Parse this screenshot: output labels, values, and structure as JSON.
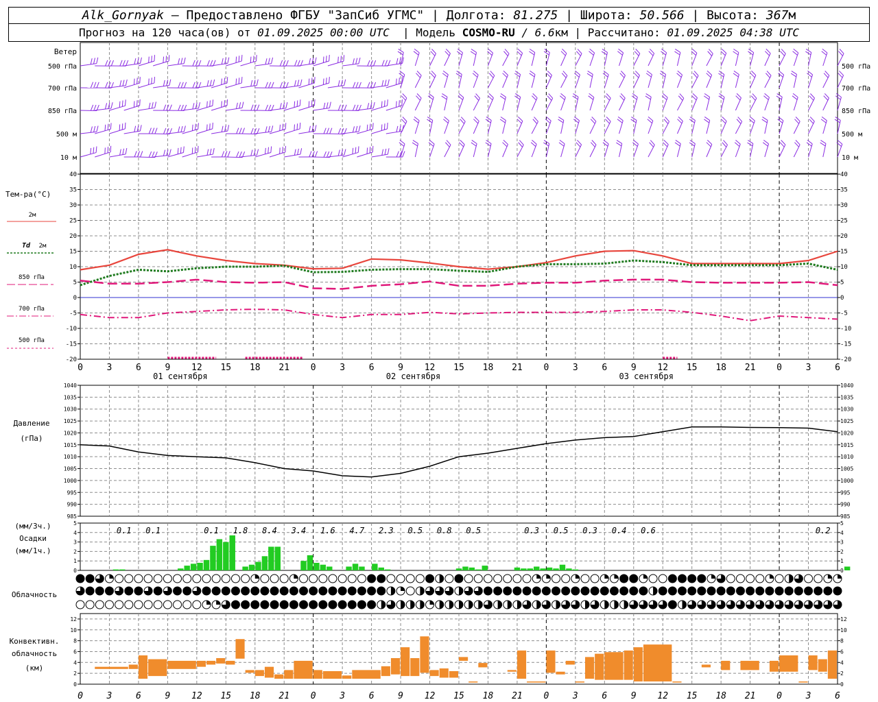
{
  "header": {
    "station": "Alk_Gornyak",
    "provider": "– Предоставлено ФГБУ \"ЗапСиб УГМС\" |",
    "lon_label": "Долгота:",
    "lon": "81.275",
    "lat_label": "| Широта:",
    "lat": "50.566",
    "alt_label": "| Высота:",
    "alt": "367",
    "alt_unit": "м",
    "forecast_label": "Прогноз на 120 часа(ов) от",
    "forecast_start": "01.09.2025 00:00 UTC",
    "model_label": "| Модель",
    "model": "COSMO-RU",
    "model_res": "/ 6.6",
    "model_res_unit": "км",
    "calc_label": "| Рассчитано:",
    "calc_time": "01.09.2025 04:38 UTC"
  },
  "colors": {
    "wind": "#8a2be2",
    "t2m": "#e8453c",
    "td2m": "#1e7a1e",
    "t850": "#e0187a",
    "t700": "#e0187a",
    "t500": "#e0187a",
    "zero": "#3030d0",
    "precip": "#22cc22",
    "conv": "#f08c2c",
    "grid": "#8c8c8c"
  },
  "chart_data": [
    {
      "type": "wind-barbs",
      "title": "Ветер",
      "levels": [
        "500 гПа",
        "700 гПа",
        "850 гПа",
        "500 м",
        "10 м"
      ]
    },
    {
      "type": "line",
      "title": "Тем-ра(°C)",
      "ylim": [
        -20,
        40
      ],
      "yticks": [
        40,
        35,
        30,
        25,
        20,
        15,
        10,
        5,
        0,
        -5,
        -10,
        -15,
        -20
      ],
      "x_hours": [
        0,
        3,
        6,
        9,
        12,
        15,
        18,
        21,
        24,
        27,
        30,
        33,
        36,
        39,
        42,
        45,
        48,
        51,
        54,
        57,
        60,
        63,
        66,
        69,
        72,
        75,
        78
      ],
      "xtick_labels": [
        "0",
        "3",
        "6",
        "9",
        "12",
        "15",
        "18",
        "21",
        "0",
        "3",
        "6",
        "9",
        "12",
        "15",
        "18",
        "21",
        "0",
        "3",
        "6",
        "9",
        "12",
        "15",
        "18",
        "21",
        "0",
        "3",
        "6"
      ],
      "day_labels": [
        "01 сентября",
        "02 сентября",
        "03 сентября"
      ],
      "series": [
        {
          "name": "2м",
          "values": [
            9,
            10.5,
            14,
            15.5,
            13.5,
            12,
            11,
            10.5,
            9.3,
            9.5,
            12.5,
            12.2,
            11.2,
            10,
            9.2,
            10,
            11.3,
            13.5,
            15,
            15.2,
            13.5,
            11,
            11,
            11,
            11,
            12,
            15
          ]
        },
        {
          "name": "Td 2м",
          "values": [
            4,
            7,
            9,
            8.5,
            9.5,
            10,
            10,
            10.3,
            8.2,
            8.3,
            9,
            9.2,
            9.2,
            8.7,
            8.3,
            10,
            10.8,
            10.8,
            11,
            12,
            11.5,
            10.5,
            10.5,
            10.5,
            10.5,
            11,
            9
          ]
        },
        {
          "name": "850 гПа",
          "values": [
            5.5,
            4.5,
            4.5,
            5,
            5.8,
            5,
            4.8,
            5,
            3,
            2.8,
            3.8,
            4.3,
            5.2,
            3.8,
            3.8,
            4.5,
            4.8,
            4.8,
            5.5,
            5.8,
            5.8,
            5,
            4.8,
            4.8,
            4.8,
            5,
            4
          ]
        },
        {
          "name": "700 гПа",
          "values": [
            -5.5,
            -6.5,
            -6.5,
            -5,
            -4.5,
            -4,
            -3.8,
            -4,
            -5.5,
            -6.5,
            -5.5,
            -5.5,
            -4.8,
            -5.3,
            -5,
            -4.8,
            -4.8,
            -4.8,
            -4.5,
            -4,
            -4,
            -4.8,
            -6,
            -7.5,
            -6,
            -6.5,
            -7
          ]
        },
        {
          "name": "500 гПа",
          "values": [
            -20
          ]
        }
      ]
    },
    {
      "type": "line",
      "title": "Давление",
      "ylabel": "(гПа)",
      "ylim": [
        985,
        1040
      ],
      "yticks": [
        1040,
        1035,
        1030,
        1025,
        1020,
        1015,
        1010,
        1005,
        1000,
        995,
        990,
        985
      ],
      "x_hours": [
        0,
        3,
        6,
        9,
        12,
        15,
        18,
        21,
        24,
        27,
        30,
        33,
        36,
        39,
        42,
        45,
        48,
        51,
        54,
        57,
        60,
        63,
        66,
        69,
        72,
        75,
        78
      ],
      "series": [
        {
          "name": "pressure",
          "values": [
            1015,
            1014.5,
            1012,
            1010.5,
            1010,
            1009.5,
            1007.5,
            1005,
            1004,
            1002,
            1001.5,
            1003,
            1006,
            1010,
            1011.5,
            1013.5,
            1015.5,
            1017,
            1018,
            1018.5,
            1020.5,
            1022.5,
            1022.5,
            1022.3,
            1022.2,
            1022,
            1020.5
          ]
        }
      ]
    },
    {
      "type": "bar",
      "title": "Осадки",
      "ylabel_top": "(мм/3ч.)",
      "ylabel_bottom": "(мм/1ч.)",
      "ylim": [
        0,
        5
      ],
      "yticks": [
        5,
        4,
        3,
        2,
        1,
        0
      ],
      "totals_3h": [
        {
          "hour": 4.5,
          "value": "0.1"
        },
        {
          "hour": 7.5,
          "value": "0.1"
        },
        {
          "hour": 13.5,
          "value": "0.1"
        },
        {
          "hour": 16.5,
          "value": "1.8"
        },
        {
          "hour": 19.5,
          "value": "8.4"
        },
        {
          "hour": 22.5,
          "value": "3.4"
        },
        {
          "hour": 25.5,
          "value": "1.6"
        },
        {
          "hour": 28.5,
          "value": "4.7"
        },
        {
          "hour": 31.5,
          "value": "2.3"
        },
        {
          "hour": 34.5,
          "value": "0.5"
        },
        {
          "hour": 37.5,
          "value": "0.8"
        },
        {
          "hour": 40.5,
          "value": "0.5"
        },
        {
          "hour": 46.5,
          "value": "0.3"
        },
        {
          "hour": 49.5,
          "value": "0.5"
        },
        {
          "hour": 52.5,
          "value": "0.3"
        },
        {
          "hour": 55.5,
          "value": "0.4"
        },
        {
          "hour": 58.5,
          "value": "0.6"
        },
        {
          "hour": 76.5,
          "value": "0.2"
        }
      ],
      "hourly_mm": [
        0,
        0,
        0,
        0,
        0,
        0.1,
        0.1,
        0,
        0,
        0,
        0,
        0,
        0,
        0,
        0,
        0.2,
        0.5,
        0.7,
        0.8,
        1.1,
        2.6,
        3.3,
        3.0,
        3.7,
        0,
        0.4,
        0.6,
        0.9,
        1.5,
        2.5,
        2.5,
        0,
        0,
        0,
        1.0,
        1.6,
        0.8,
        0.6,
        0.4,
        0,
        0,
        0.4,
        0.7,
        0.4,
        0,
        0.7,
        0.3,
        0.1,
        0,
        0,
        0,
        0,
        0,
        0,
        0,
        0,
        0,
        0,
        0.2,
        0.4,
        0.3,
        0.1,
        0.5,
        0,
        0,
        0,
        0,
        0.3,
        0.2,
        0.2,
        0.4,
        0.2,
        0.3,
        0.2,
        0.6,
        0.2,
        0.1,
        0,
        0,
        0,
        0,
        0,
        0,
        0,
        0,
        0,
        0,
        0,
        0,
        0,
        0,
        0,
        0,
        0,
        0,
        0,
        0,
        0,
        0,
        0,
        0,
        0,
        0,
        0,
        0,
        0,
        0,
        0,
        0,
        0,
        0,
        0,
        0,
        0,
        0,
        0,
        0,
        0,
        0.4
      ]
    },
    {
      "type": "cloud-symbols",
      "title": "Облачность",
      "rows": [
        [
          4,
          4,
          3,
          1,
          0,
          0,
          0,
          0,
          0,
          0,
          0,
          0,
          0,
          0,
          0,
          0,
          0,
          0,
          1,
          0,
          0,
          0,
          1,
          0,
          0,
          0,
          0,
          0,
          0,
          0,
          4,
          4,
          0,
          0,
          0,
          0,
          4,
          2,
          0,
          4,
          0,
          0,
          0,
          0,
          0,
          0,
          0,
          1,
          1,
          0,
          0,
          1,
          0,
          0,
          1,
          1,
          4,
          4,
          1,
          0,
          0,
          4,
          4,
          4,
          4,
          1,
          3,
          0,
          0,
          0,
          0,
          1,
          0,
          2,
          3,
          0,
          0,
          1,
          1,
          2,
          1,
          1,
          2,
          0,
          0,
          0,
          0,
          0,
          0,
          0,
          0,
          0,
          0,
          0,
          0,
          0,
          0,
          0,
          0,
          0,
          0,
          0,
          0,
          0,
          0,
          0,
          0,
          0,
          0,
          0,
          0,
          0,
          0,
          0,
          0
        ],
        [
          3,
          4,
          4,
          4,
          3,
          4,
          4,
          3,
          4,
          3,
          4,
          4,
          3,
          4,
          4,
          4,
          4,
          4,
          4,
          4,
          4,
          4,
          4,
          4,
          4,
          4,
          4,
          4,
          4,
          4,
          4,
          4,
          2,
          1,
          0,
          2,
          3,
          3,
          3,
          2,
          3,
          3,
          4,
          4,
          4,
          4,
          4,
          4,
          4,
          4,
          4,
          4,
          4,
          4,
          4,
          4,
          4,
          4,
          4,
          2,
          4,
          4,
          4,
          4,
          4,
          4,
          4,
          4,
          4,
          4,
          4,
          4,
          4,
          4,
          4,
          4,
          4,
          4,
          4,
          4,
          4,
          4,
          4,
          4,
          4,
          4,
          4,
          4,
          4,
          4,
          4,
          4,
          4,
          4,
          4,
          4,
          4,
          4,
          4,
          4,
          4,
          4,
          4,
          4,
          4,
          4,
          4,
          4,
          4,
          4,
          4,
          4,
          4,
          4,
          4,
          4,
          1,
          1,
          1
        ],
        [
          0,
          0,
          0,
          0,
          0,
          0,
          0,
          0,
          0,
          0,
          0,
          0,
          0,
          1,
          1,
          3,
          4,
          4,
          4,
          4,
          4,
          4,
          4,
          4,
          4,
          4,
          4,
          4,
          4,
          4,
          4,
          2,
          3,
          2,
          2,
          2,
          1,
          2,
          2,
          2,
          2,
          2,
          3,
          2,
          2,
          2,
          3,
          2,
          3,
          2,
          3,
          3,
          2,
          3,
          2,
          2,
          2,
          3,
          3,
          3,
          3,
          4,
          2,
          3,
          3,
          3,
          3,
          3,
          3,
          3,
          3,
          3,
          3,
          3,
          3,
          3,
          3,
          3,
          3,
          3,
          3,
          3,
          3,
          2,
          2,
          2,
          2,
          2,
          2,
          2,
          2,
          2,
          2,
          2,
          2,
          3,
          3,
          3,
          3,
          3,
          3,
          3,
          3,
          3,
          4,
          3,
          4,
          3,
          4,
          4,
          4,
          4,
          4,
          4,
          4,
          4,
          4,
          3,
          1
        ]
      ]
    },
    {
      "type": "bar",
      "title": "Конвективн. облачность",
      "ylabel": "(км)",
      "ylim": [
        0,
        13
      ],
      "yticks": [
        12,
        10,
        8,
        6,
        4,
        2,
        0
      ],
      "segments": [
        {
          "h0": 1.5,
          "h1": 5,
          "base": 2.8,
          "top": 3.2
        },
        {
          "h0": 5,
          "h1": 6,
          "base": 2.8,
          "top": 3.6
        },
        {
          "h0": 6,
          "h1": 7,
          "base": 1.0,
          "top": 5.3
        },
        {
          "h0": 7,
          "h1": 9,
          "base": 1.5,
          "top": 4.6
        },
        {
          "h0": 9,
          "h1": 12,
          "base": 2.8,
          "top": 4.3
        },
        {
          "h0": 12,
          "h1": 13,
          "base": 3.2,
          "top": 4.3
        },
        {
          "h0": 13,
          "h1": 14,
          "base": 3.6,
          "top": 4.3
        },
        {
          "h0": 14,
          "h1": 15,
          "base": 3.8,
          "top": 4.8
        },
        {
          "h0": 15,
          "h1": 16,
          "base": 3.6,
          "top": 4.3
        },
        {
          "h0": 16,
          "h1": 17,
          "base": 4.7,
          "top": 8.3
        },
        {
          "h0": 17,
          "h1": 18,
          "base": 2.1,
          "top": 2.6
        },
        {
          "h0": 18,
          "h1": 19,
          "base": 1.5,
          "top": 2.6
        },
        {
          "h0": 19,
          "h1": 20,
          "base": 1.2,
          "top": 3.2
        },
        {
          "h0": 20,
          "h1": 21,
          "base": 1.0,
          "top": 1.8
        },
        {
          "h0": 21,
          "h1": 22,
          "base": 1.0,
          "top": 2.6
        },
        {
          "h0": 22,
          "h1": 24,
          "base": 1.0,
          "top": 4.3
        },
        {
          "h0": 24,
          "h1": 25,
          "base": 1.0,
          "top": 2.6
        },
        {
          "h0": 25,
          "h1": 27,
          "base": 1.0,
          "top": 2.4
        },
        {
          "h0": 27,
          "h1": 28,
          "base": 1.0,
          "top": 1.6
        },
        {
          "h0": 28,
          "h1": 31,
          "base": 1.0,
          "top": 2.6
        },
        {
          "h0": 31,
          "h1": 32,
          "base": 1.5,
          "top": 3.3
        },
        {
          "h0": 32,
          "h1": 33,
          "base": 1.8,
          "top": 4.8
        },
        {
          "h0": 33,
          "h1": 34,
          "base": 1.5,
          "top": 6.8
        },
        {
          "h0": 34,
          "h1": 35,
          "base": 1.5,
          "top": 4.8
        },
        {
          "h0": 35,
          "h1": 36,
          "base": 2.1,
          "top": 8.8
        },
        {
          "h0": 36,
          "h1": 37,
          "base": 1.5,
          "top": 2.6
        },
        {
          "h0": 37,
          "h1": 38,
          "base": 1.2,
          "top": 2.9
        },
        {
          "h0": 38,
          "h1": 39,
          "base": 1.2,
          "top": 2.4
        },
        {
          "h0": 39,
          "h1": 40,
          "base": 4.3,
          "top": 5.0
        },
        {
          "h0": 40,
          "h1": 41,
          "base": 0.3,
          "top": 0.5
        },
        {
          "h0": 41,
          "h1": 42,
          "base": 3.1,
          "top": 3.9
        },
        {
          "h0": 44,
          "h1": 45,
          "base": 2.3,
          "top": 2.6
        },
        {
          "h0": 45,
          "h1": 46,
          "base": 1.0,
          "top": 6.2
        },
        {
          "h0": 46,
          "h1": 48,
          "base": 0.3,
          "top": 0.5
        },
        {
          "h0": 48,
          "h1": 49,
          "base": 2.1,
          "top": 6.2
        },
        {
          "h0": 49,
          "h1": 50,
          "base": 1.8,
          "top": 2.3
        },
        {
          "h0": 50,
          "h1": 51,
          "base": 3.6,
          "top": 4.3
        },
        {
          "h0": 51,
          "h1": 52,
          "base": 0.3,
          "top": 0.5
        },
        {
          "h0": 52,
          "h1": 53,
          "base": 1.0,
          "top": 5.0
        },
        {
          "h0": 53,
          "h1": 54,
          "base": 0.8,
          "top": 5.6
        },
        {
          "h0": 54,
          "h1": 56,
          "base": 0.8,
          "top": 5.9
        },
        {
          "h0": 56,
          "h1": 57,
          "base": 0.8,
          "top": 6.2
        },
        {
          "h0": 57,
          "h1": 58,
          "base": 0.5,
          "top": 6.8
        },
        {
          "h0": 58,
          "h1": 61,
          "base": 0.5,
          "top": 7.3
        },
        {
          "h0": 61,
          "h1": 62,
          "base": 0.3,
          "top": 0.5
        },
        {
          "h0": 64,
          "h1": 65,
          "base": 3.1,
          "top": 3.6
        },
        {
          "h0": 66,
          "h1": 67,
          "base": 2.6,
          "top": 4.3
        },
        {
          "h0": 68,
          "h1": 70,
          "base": 2.6,
          "top": 4.3
        },
        {
          "h0": 71,
          "h1": 72,
          "base": 2.3,
          "top": 4.3
        },
        {
          "h0": 72,
          "h1": 74,
          "base": 2.3,
          "top": 5.3
        },
        {
          "h0": 74,
          "h1": 75,
          "base": 0.3,
          "top": 0.5
        },
        {
          "h0": 75,
          "h1": 76,
          "base": 2.6,
          "top": 5.3
        },
        {
          "h0": 76,
          "h1": 77,
          "base": 2.3,
          "top": 4.6
        },
        {
          "h0": 77,
          "h1": 78,
          "base": 1.0,
          "top": 6.2
        }
      ]
    }
  ],
  "legend": {
    "t2m": "2м",
    "td": "Td",
    "td_level": "2м",
    "t850": "850 гПа",
    "t700": "700 гПа",
    "t500": "500 гПа"
  }
}
